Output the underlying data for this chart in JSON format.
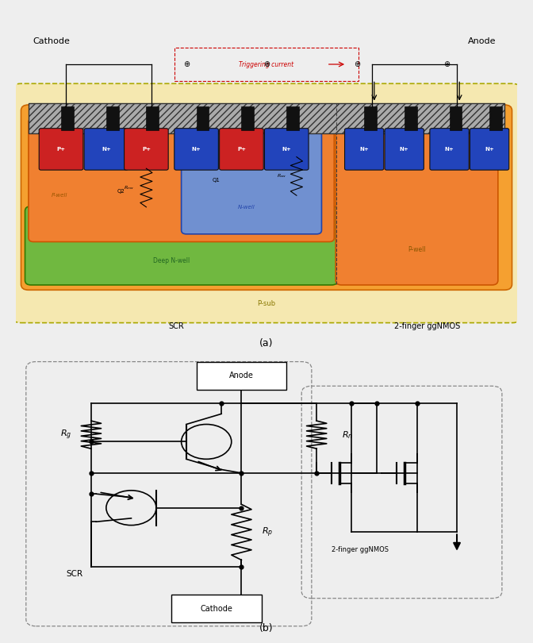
{
  "fig_width": 6.72,
  "fig_height": 8.1,
  "bg_color": "#eeeeee",
  "top_label_cathode": "Cathode",
  "top_label_anode": "Anode",
  "label_a": "(a)",
  "label_b": "(b)",
  "scr_label": "SCR",
  "ggNMOS_label": "2-finger ggNMOS",
  "deep_nwell_label": "Deep N-well",
  "pwell_label": "P-well",
  "psub_label": "P-sub",
  "nwell_label": "N-well",
  "triggering_label": "Triggering current",
  "triggering_color": "#cc0000",
  "psub_color": "#f5e8b0",
  "orange_color": "#f5a030",
  "green_color": "#70b840",
  "blue_color": "#7090d0",
  "red_region": "#cc2222",
  "blue_region": "#2244bb",
  "metal_color": "#999999"
}
